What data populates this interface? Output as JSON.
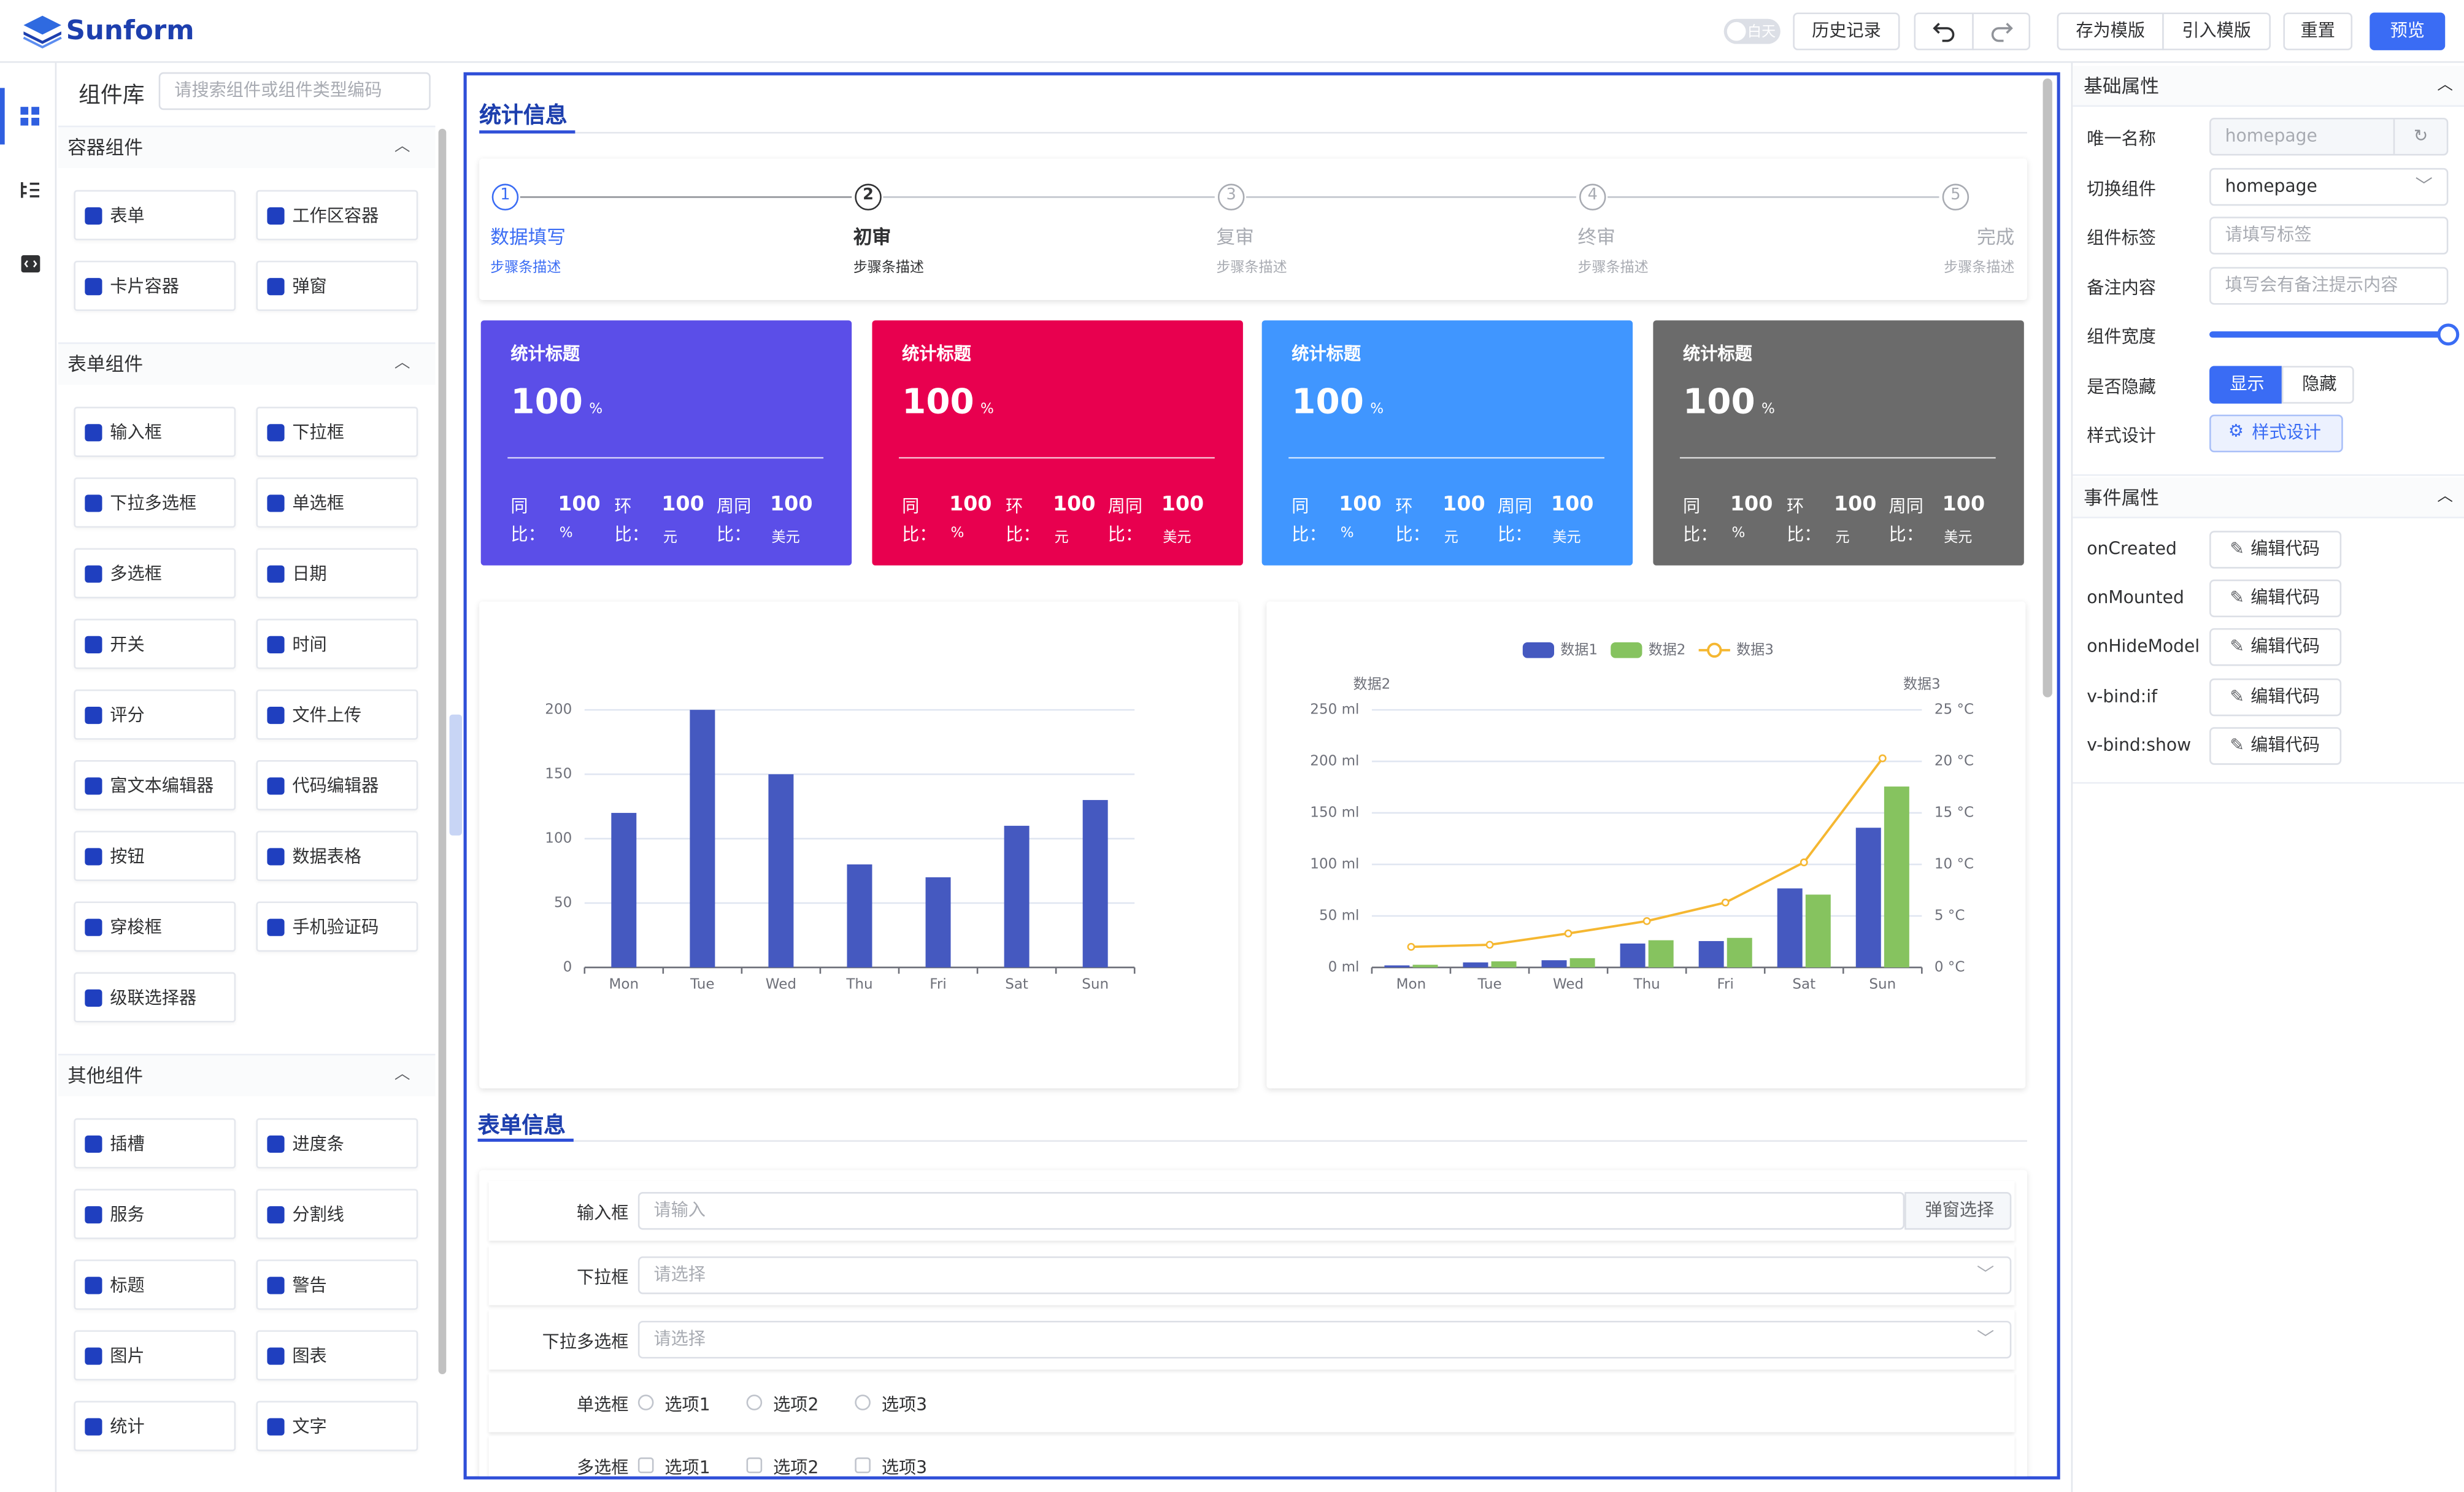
{
  "header": {
    "logo": "Sunform",
    "theme_toggle": "白天",
    "buttons": [
      "历史记录",
      "存为模版",
      "引入模版",
      "重置",
      "预览"
    ]
  },
  "library": {
    "title": "组件库",
    "search_placeholder": "请搜索组件或组件类型编码",
    "groups": [
      {
        "title": "容器组件",
        "items": [
          "表单",
          "工作区容器",
          "卡片容器",
          "弹窗"
        ]
      },
      {
        "title": "表单组件",
        "items": [
          "输入框",
          "下拉框",
          "下拉多选框",
          "单选框",
          "多选框",
          "日期",
          "开关",
          "时间",
          "评分",
          "文件上传",
          "富文本编辑器",
          "代码编辑器",
          "按钮",
          "数据表格",
          "穿梭框",
          "手机验证码",
          "级联选择器"
        ]
      },
      {
        "title": "其他组件",
        "items": [
          "插槽",
          "进度条",
          "服务",
          "分割线",
          "标题",
          "警告",
          "图片",
          "图表",
          "统计",
          "文字"
        ]
      }
    ]
  },
  "canvas": {
    "stat_section": "统计信息",
    "steps": [
      {
        "number": 1,
        "title": "数据填写",
        "description": "步骤条描述"
      },
      {
        "number": 2,
        "title": "初审",
        "description": "步骤条描述"
      },
      {
        "number": 3,
        "title": "复审",
        "description": "步骤条描述"
      },
      {
        "number": 4,
        "title": "终审",
        "description": "步骤条描述"
      },
      {
        "number": 5,
        "title": "完成",
        "description": "步骤条描述"
      }
    ],
    "stat_cards": [
      {
        "title": "统计标题",
        "value": 100,
        "unit": "%",
        "color": "#5b4ee8",
        "metrics": [
          {
            "label": "同比：",
            "value": 100,
            "unit": "%"
          },
          {
            "label": "环比：",
            "value": 100,
            "unit": "元"
          },
          {
            "label": "周同比：",
            "value": 100,
            "unit": "美元"
          }
        ]
      },
      {
        "title": "统计标题",
        "value": 100,
        "unit": "%",
        "color": "#e8004f",
        "metrics": [
          {
            "label": "同比：",
            "value": 100,
            "unit": "%"
          },
          {
            "label": "环比：",
            "value": 100,
            "unit": "元"
          },
          {
            "label": "周同比：",
            "value": 100,
            "unit": "美元"
          }
        ]
      },
      {
        "title": "统计标题",
        "value": 100,
        "unit": "%",
        "color": "#4096ff",
        "metrics": [
          {
            "label": "同比：",
            "value": 100,
            "unit": "%"
          },
          {
            "label": "环比：",
            "value": 100,
            "unit": "元"
          },
          {
            "label": "周同比：",
            "value": 100,
            "unit": "美元"
          }
        ]
      },
      {
        "title": "统计标题",
        "value": 100,
        "unit": "%",
        "color": "#6b6b6b",
        "metrics": [
          {
            "label": "同比：",
            "value": 100,
            "unit": "%"
          },
          {
            "label": "环比：",
            "value": 100,
            "unit": "元"
          },
          {
            "label": "周同比：",
            "value": 100,
            "unit": "美元"
          }
        ]
      }
    ],
    "charts": [
      {
        "type": "bar",
        "categories": [
          "Mon",
          "Tue",
          "Wed",
          "Thu",
          "Fri",
          "Sat",
          "Sun"
        ],
        "values": [
          120,
          200,
          150,
          80,
          70,
          110,
          130
        ],
        "color": "#4559c0",
        "ylim": [
          0,
          200
        ],
        "yticks": [
          0,
          50,
          100,
          150,
          200
        ],
        "grid": true
      },
      {
        "type": "bar-line",
        "categories": [
          "Mon",
          "Tue",
          "Wed",
          "Thu",
          "Fri",
          "Sat",
          "Sun"
        ],
        "y_label": "数据2",
        "y2_label": "数据3",
        "series": [
          {
            "name": "数据1",
            "type": "bar",
            "color": "#4559c0",
            "values": [
              2.0,
              4.9,
              7.0,
              23.2,
              25.6,
              76.7,
              135.6
            ]
          },
          {
            "name": "数据2",
            "type": "bar",
            "color": "#86c35f",
            "values": [
              2.6,
              5.9,
              9.0,
              26.4,
              28.7,
              70.7,
              175.6
            ]
          },
          {
            "name": "数据3",
            "type": "line",
            "axis": "y2",
            "color": "#f5b731",
            "values": [
              2.0,
              2.2,
              3.3,
              4.5,
              6.3,
              10.2,
              20.3
            ]
          }
        ],
        "ylim": [
          0,
          250
        ],
        "yticks": [
          {
            "value": 0,
            "label": "0 ml"
          },
          {
            "value": 50,
            "label": "50 ml"
          },
          {
            "value": 100,
            "label": "100 ml"
          },
          {
            "value": 150,
            "label": "150 ml"
          },
          {
            "value": 200,
            "label": "200 ml"
          },
          {
            "value": 250,
            "label": "250 ml"
          }
        ],
        "y2lim": [
          0,
          25
        ],
        "y2ticks": [
          {
            "value": 0,
            "label": "0 °C"
          },
          {
            "value": 5,
            "label": "5 °C"
          },
          {
            "value": 10,
            "label": "10 °C"
          },
          {
            "value": 15,
            "label": "15 °C"
          },
          {
            "value": 20,
            "label": "20 °C"
          },
          {
            "value": 25,
            "label": "25 °C"
          }
        ],
        "grid": true,
        "legend": "top"
      }
    ],
    "form_section": "表单信息",
    "form_rows": [
      {
        "label": "输入框",
        "placeholder": "请输入",
        "button": "弹窗选择"
      },
      {
        "label": "下拉框",
        "placeholder": "请选择"
      },
      {
        "label": "下拉多选框",
        "placeholder": "请选择"
      },
      {
        "label": "单选框",
        "options": [
          "选项1",
          "选项2",
          "选项3"
        ],
        "control": "radio"
      },
      {
        "label": "多选框",
        "options": [
          "选项1",
          "选项2",
          "选项3"
        ],
        "control": "checkbox"
      }
    ]
  },
  "properties": {
    "basic_title": "基础属性",
    "fields": [
      {
        "label": "唯一名称",
        "value": "homepage",
        "control": "disabled-input"
      },
      {
        "label": "切换组件",
        "value": "homepage",
        "control": "select"
      },
      {
        "label": "组件标签",
        "placeholder": "请填写标签",
        "control": "input"
      },
      {
        "label": "备注内容",
        "placeholder": "填写会有备注提示内容",
        "control": "input"
      },
      {
        "label": "组件宽度",
        "control": "slider"
      },
      {
        "label": "是否隐藏",
        "options": [
          "显示",
          "隐藏"
        ],
        "control": "radio-button"
      },
      {
        "label": "样式设计",
        "button": "样式设计",
        "control": "button"
      }
    ],
    "event_title": "事件属性",
    "events": [
      "onCreated",
      "onMounted",
      "onHideModel",
      "v-bind:if",
      "v-bind:show"
    ],
    "edit_button": "编辑代码"
  }
}
